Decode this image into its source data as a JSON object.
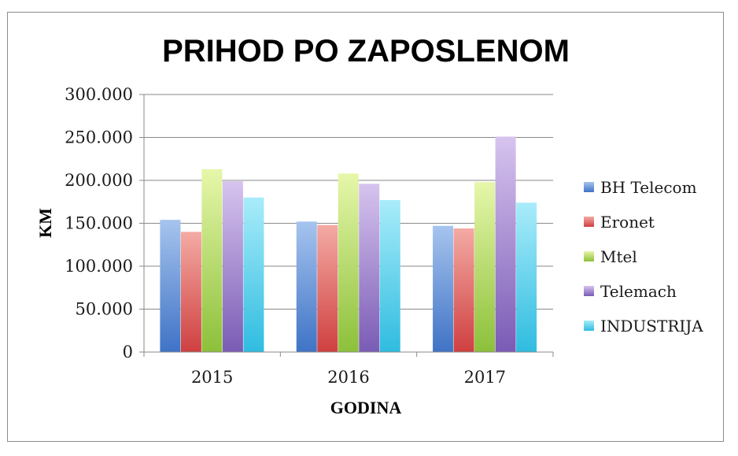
{
  "chart_data": {
    "type": "bar",
    "title": "PRIHOD PO ZAPOSLENOM",
    "xlabel": "GODINA",
    "ylabel": "KM",
    "categories": [
      "2015",
      "2016",
      "2017"
    ],
    "ylim": [
      0,
      300000
    ],
    "yticks": [
      {
        "value": 0,
        "label": "0"
      },
      {
        "value": 50000,
        "label": "50.000"
      },
      {
        "value": 100000,
        "label": "100.000"
      },
      {
        "value": 150000,
        "label": "150.000"
      },
      {
        "value": 200000,
        "label": "200.000"
      },
      {
        "value": 250000,
        "label": "250.000"
      },
      {
        "value": 300000,
        "label": "300.000"
      }
    ],
    "grid": true,
    "legend_position": "right",
    "series": [
      {
        "name": "BH Telecom",
        "values": [
          154000,
          152000,
          147000
        ],
        "color_top": "#a6c4ee",
        "color_bottom": "#3f73c6"
      },
      {
        "name": "Eronet",
        "values": [
          140000,
          148000,
          144000
        ],
        "color_top": "#f4aaa4",
        "color_bottom": "#cf4040"
      },
      {
        "name": "Mtel",
        "values": [
          213000,
          208000,
          198000
        ],
        "color_top": "#e6f7aa",
        "color_bottom": "#8cc03a"
      },
      {
        "name": "Telemach",
        "values": [
          199000,
          196000,
          251000
        ],
        "color_top": "#d7c4ef",
        "color_bottom": "#7a5bb5"
      },
      {
        "name": "INDUSTRIJA",
        "values": [
          180000,
          177000,
          174000
        ],
        "color_top": "#a9ecfa",
        "color_bottom": "#2fbce0"
      }
    ]
  }
}
